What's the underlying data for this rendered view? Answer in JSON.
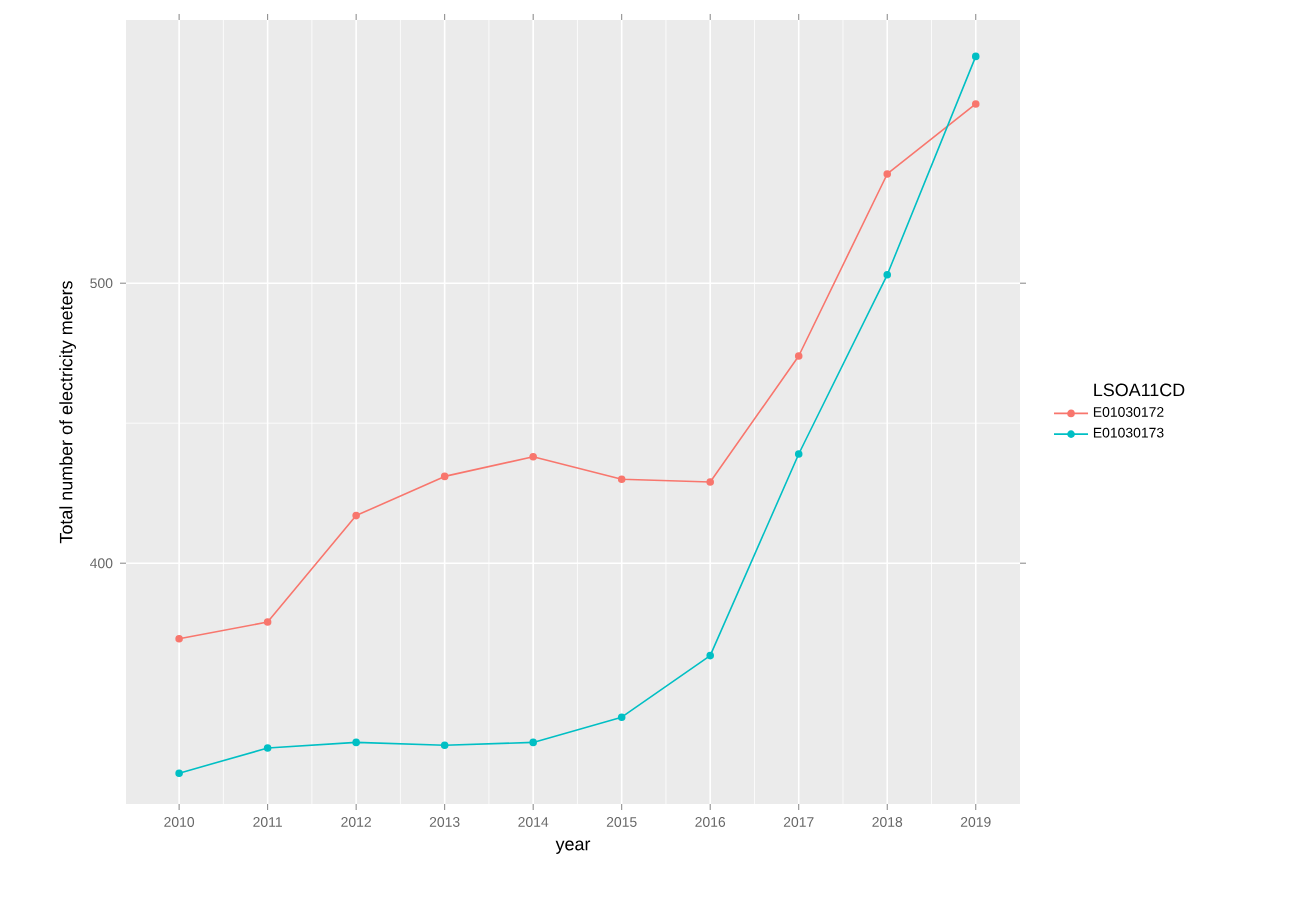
{
  "chart_data": {
    "type": "line",
    "xlabel": "year",
    "ylabel": "Total number of electricity meters",
    "legend_title": "LSOA11CD",
    "x": [
      2010,
      2011,
      2012,
      2013,
      2014,
      2015,
      2016,
      2017,
      2018,
      2019
    ],
    "series": [
      {
        "name": "E01030172",
        "color": "#f8766d",
        "values": [
          373,
          379,
          417,
          431,
          438,
          430,
          429,
          474,
          539,
          564
        ]
      },
      {
        "name": "E01030173",
        "color": "#00bfc4",
        "values": [
          325,
          334,
          336,
          335,
          336,
          345,
          367,
          439,
          503,
          581
        ]
      }
    ],
    "xlim": [
      2009.4,
      2019.5
    ],
    "ylim": [
      314,
      594
    ],
    "xticks": [
      2010,
      2011,
      2012,
      2013,
      2014,
      2015,
      2016,
      2017,
      2018,
      2019
    ],
    "yticks": [
      400,
      500
    ],
    "grid": true,
    "legend": "right",
    "marker": "circle",
    "line_style": "solid"
  }
}
